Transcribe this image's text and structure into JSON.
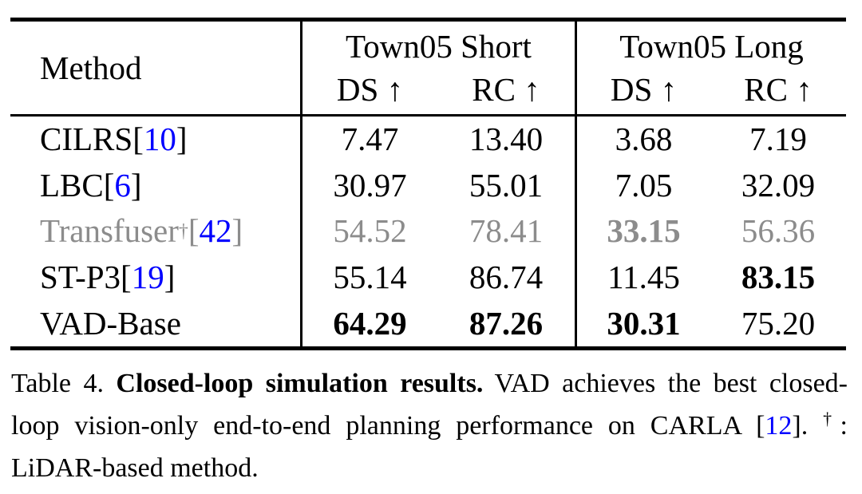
{
  "colors": {
    "background": "#ffffff",
    "text": "#000000",
    "citation_blue": "#0000ff",
    "lidar_row_gray": "#8c8c8c"
  },
  "table": {
    "method_header": "Method",
    "groups": [
      {
        "label": "Town05 Short"
      },
      {
        "label": "Town05 Long"
      }
    ],
    "sub_headers": [
      "DS ↑",
      "RC ↑",
      "DS ↑",
      "RC ↑"
    ],
    "rows": [
      {
        "method": "CILRS",
        "cite_open": " [",
        "cite": "10",
        "cite_close": "]",
        "values": [
          "7.47",
          "13.40",
          "3.68",
          "7.19"
        ],
        "muted": false,
        "bold_values": [
          false,
          false,
          false,
          false
        ]
      },
      {
        "method": "LBC",
        "cite_open": " [",
        "cite": "6",
        "cite_close": "]",
        "values": [
          "30.97",
          "55.01",
          "7.05",
          "32.09"
        ],
        "muted": false,
        "bold_values": [
          false,
          false,
          false,
          false
        ]
      },
      {
        "method": "Transfuser",
        "dagger": "†",
        "cite_open": " [",
        "cite": "42",
        "cite_close": "]",
        "values": [
          "54.52",
          "78.41",
          "33.15",
          "56.36"
        ],
        "muted": true,
        "bold_values": [
          false,
          false,
          true,
          false
        ]
      },
      {
        "method": "ST-P3",
        "cite_open": " [",
        "cite": "19",
        "cite_close": "]",
        "values": [
          "55.14",
          "86.74",
          "11.45",
          "83.15"
        ],
        "muted": false,
        "bold_values": [
          false,
          false,
          false,
          true
        ]
      },
      {
        "method": "VAD-Base",
        "values": [
          "64.29",
          "87.26",
          "30.31",
          "75.20"
        ],
        "muted": false,
        "bold_values": [
          true,
          true,
          true,
          false
        ]
      }
    ]
  },
  "caption": {
    "label": "Table 4.",
    "title": "Closed-loop simulation results.",
    "body_before_cite": "VAD achieves the best closed-loop vision-only end-to-end planning performance on CARLA [",
    "cite": "12",
    "body_after_cite": "].",
    "dagger": "†",
    "body_end": ": LiDAR-based method."
  }
}
